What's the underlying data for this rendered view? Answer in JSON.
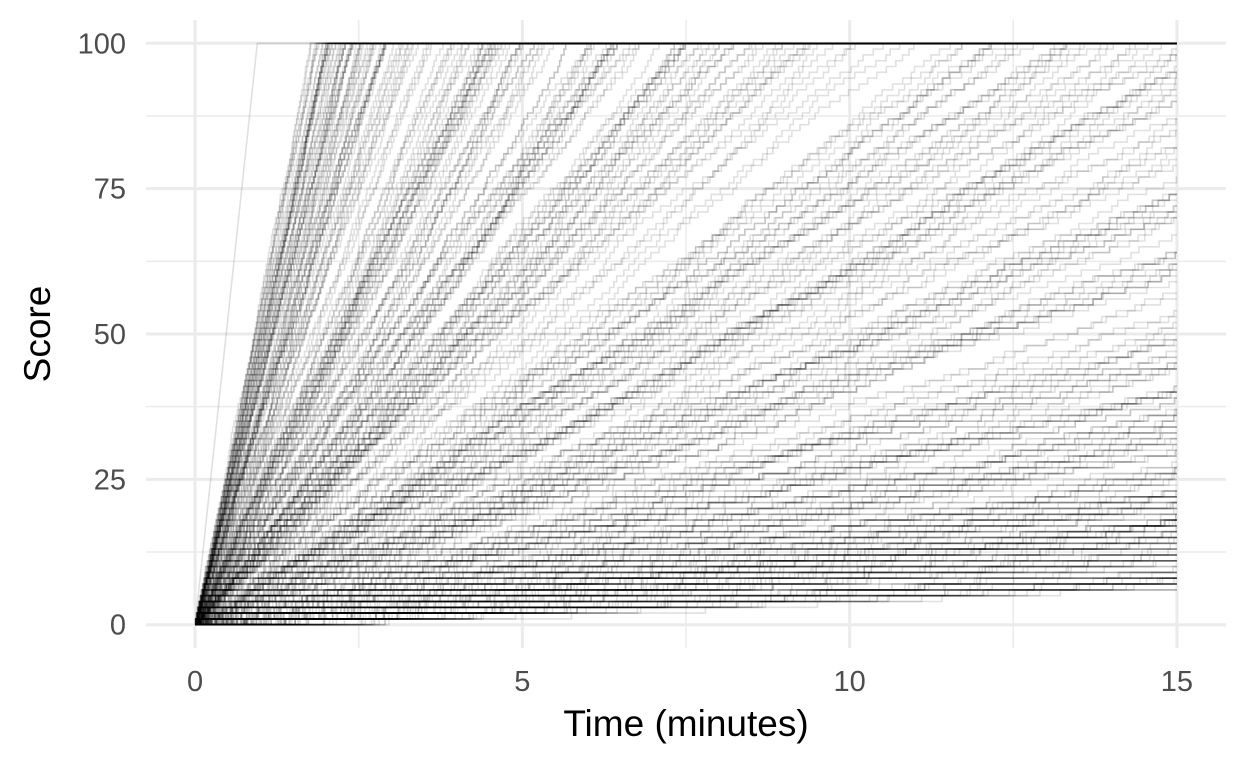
{
  "chart_data": {
    "type": "line",
    "title": "",
    "xlabel": "Time (minutes)",
    "ylabel": "Score",
    "xlim": [
      -0.75,
      15.75
    ],
    "ylim": [
      -4,
      104
    ],
    "x_ticks": [
      0,
      5,
      10,
      15
    ],
    "x_tick_labels": [
      "0",
      "5",
      "10",
      "15"
    ],
    "y_ticks": [
      0,
      25,
      50,
      75,
      100
    ],
    "y_tick_labels": [
      "0",
      "25",
      "50",
      "75",
      "100"
    ],
    "grid": true,
    "legend": "none",
    "line_color": "#000000",
    "line_opacity": 0.12,
    "description_of_series": "Several hundred step-wise cumulative score trajectories starting at (0,0); each rises at its own rate until reaching 100 or the 15-minute limit.",
    "series": [
      {
        "x": [
          0,
          0.95,
          15
        ],
        "y": [
          0,
          100,
          100
        ]
      },
      {
        "x": [
          0,
          1.7,
          15
        ],
        "y": [
          0,
          100,
          100
        ]
      },
      {
        "x": [
          0,
          2.4,
          15
        ],
        "y": [
          0,
          100,
          100
        ]
      },
      {
        "x": [
          0,
          3.5,
          15
        ],
        "y": [
          0,
          100,
          100
        ]
      },
      {
        "x": [
          0,
          5.0,
          15
        ],
        "y": [
          0,
          100,
          100
        ]
      },
      {
        "x": [
          0,
          7.0,
          15
        ],
        "y": [
          0,
          100,
          100
        ]
      },
      {
        "x": [
          0,
          10.0,
          15
        ],
        "y": [
          0,
          100,
          100
        ]
      },
      {
        "x": [
          0,
          15
        ],
        "y": [
          0,
          95
        ]
      },
      {
        "x": [
          0,
          15
        ],
        "y": [
          0,
          75
        ]
      },
      {
        "x": [
          0,
          15
        ],
        "y": [
          0,
          50
        ]
      },
      {
        "x": [
          0,
          15
        ],
        "y": [
          0,
          25
        ]
      },
      {
        "x": [
          0,
          15
        ],
        "y": [
          0,
          10
        ]
      },
      {
        "x": [
          0,
          15
        ],
        "y": [
          0,
          3
        ]
      }
    ]
  }
}
